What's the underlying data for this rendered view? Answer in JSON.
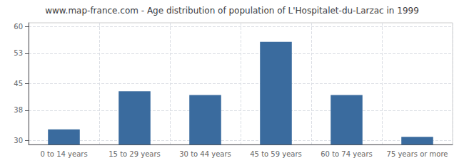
{
  "chart_data": {
    "type": "bar",
    "title": "www.map-france.com - Age distribution of population of L'Hospitalet-du-Larzac in 1999",
    "categories": [
      "0 to 14 years",
      "15 to 29 years",
      "30 to 44 years",
      "45 to 59 years",
      "60 to 74 years",
      "75 years or more"
    ],
    "values": [
      33,
      43,
      42,
      56,
      42,
      31
    ],
    "color": "#3a6b9e",
    "ylim": [
      29,
      61
    ],
    "yticks": [
      30,
      38,
      45,
      53,
      60
    ],
    "grid": true
  }
}
